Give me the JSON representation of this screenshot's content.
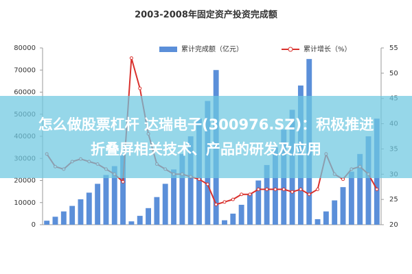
{
  "chart_data": {
    "type": "bar-line",
    "title": "2003-2008年固定资产投资完成额",
    "categories": [
      null,
      null,
      null,
      null,
      null,
      null,
      null,
      null,
      null,
      null,
      null,
      null,
      null,
      null,
      null,
      null,
      null,
      null,
      null,
      null,
      null,
      null,
      null,
      null,
      null,
      null,
      null,
      null,
      null,
      null,
      null,
      null,
      null,
      null,
      null,
      null,
      null,
      null,
      null,
      null
    ],
    "series": [
      {
        "name": "累计完成额（亿元）",
        "color": "#5b8fd9",
        "kind": "bar",
        "axis": "y",
        "values": [
          1800,
          3600,
          6000,
          8500,
          11500,
          14500,
          18500,
          22500,
          26500,
          32000,
          1500,
          4000,
          7500,
          12500,
          18500,
          25000,
          32000,
          40000,
          48000,
          56000,
          70000,
          2000,
          5000,
          9000,
          14000,
          20000,
          27000,
          35000,
          43000,
          52000,
          63000,
          75000,
          2500,
          6000,
          11000,
          17000,
          24000,
          32000,
          40000,
          48000
        ]
      },
      {
        "name": "累计增长（%）",
        "color": "#d9302c",
        "kind": "line",
        "axis": "y2",
        "values": [
          34,
          31.5,
          31,
          32.5,
          33,
          32.5,
          32,
          31,
          30,
          28.5,
          53,
          47,
          38,
          32,
          31,
          30,
          30,
          29.5,
          29,
          28,
          24,
          24.5,
          25,
          26,
          26,
          27,
          27,
          27,
          27,
          26.5,
          27,
          26,
          27,
          34,
          30,
          29,
          31,
          31.5,
          30,
          27
        ]
      }
    ],
    "ylim": [
      0,
      80000
    ],
    "yticks": [
      0,
      10000,
      20000,
      30000,
      40000,
      50000,
      60000,
      70000,
      80000
    ],
    "y2lim": [
      20,
      55
    ],
    "y2ticks": [
      20,
      25,
      30,
      35,
      40,
      45,
      50,
      55
    ]
  },
  "headline": "怎么做股票杠杆 达瑞电子(300976.SZ)：积极推进折叠屏相关技术、产品的研发及应用"
}
